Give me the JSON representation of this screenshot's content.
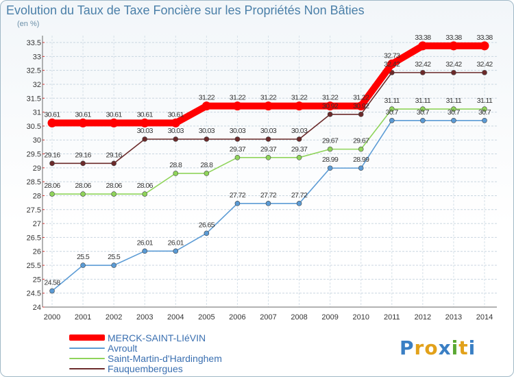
{
  "chart_data": {
    "type": "line",
    "title": "Evolution du Taux de Taxe Foncière sur les Propriétés Non Bâties",
    "ylabel": "(en %)",
    "xlabel": "",
    "x": [
      "2000",
      "2001",
      "2002",
      "2003",
      "2004",
      "2005",
      "2006",
      "2007",
      "2008",
      "2009",
      "2010",
      "2011",
      "2012",
      "2013",
      "2014"
    ],
    "ylim": [
      24,
      33.5
    ],
    "yticks": [
      24,
      24.5,
      25,
      25.5,
      26,
      26.5,
      27,
      27.5,
      28,
      28.5,
      29,
      29.5,
      30,
      30.5,
      31,
      31.5,
      32,
      32.5,
      33,
      33.5
    ],
    "grid": true,
    "series": [
      {
        "name": "MERCK-SAINT-LIéVIN",
        "color": "#ff0000",
        "values": [
          30.61,
          30.61,
          30.61,
          30.61,
          30.61,
          31.22,
          31.22,
          31.22,
          31.22,
          31.22,
          31.22,
          32.73,
          33.38,
          33.38,
          33.38
        ],
        "labels": [
          "30.61",
          "30.61",
          "30.61",
          "30.61",
          "30.61",
          "31.22",
          "31.22",
          "31.22",
          "31.22",
          "31.22",
          "31.22",
          "32.73",
          "33.38",
          "33.38",
          "33.38"
        ]
      },
      {
        "name": "Avroult",
        "color": "#5b9bd5",
        "values": [
          24.58,
          25.5,
          25.5,
          26.01,
          26.01,
          26.65,
          27.72,
          27.72,
          27.72,
          28.99,
          28.99,
          30.7,
          30.7,
          30.7,
          30.7
        ],
        "labels": [
          "24.58",
          "25.5",
          "25.5",
          "26.01",
          "26.01",
          "26.65",
          "27.72",
          "27.72",
          "27.72",
          "28.99",
          "28.99",
          "30.7",
          "30.7",
          "30.7",
          "30.7"
        ]
      },
      {
        "name": "Saint-Martin-d'Hardinghem",
        "color": "#8fd45a",
        "values": [
          28.06,
          28.06,
          28.06,
          28.06,
          28.8,
          28.8,
          29.37,
          29.37,
          29.37,
          29.67,
          29.67,
          31.11,
          31.11,
          31.11,
          31.11
        ],
        "labels": [
          "28.06",
          "28.06",
          "28.06",
          "28.06",
          "28.8",
          "28.8",
          "29.37",
          "29.37",
          "29.37",
          "29.67",
          "29.67",
          "31.11",
          "31.11",
          "31.11",
          "31.11"
        ]
      },
      {
        "name": "Fauquembergues",
        "color": "#6b2a2a",
        "values": [
          29.16,
          29.16,
          29.16,
          30.03,
          30.03,
          30.03,
          30.03,
          30.03,
          30.03,
          30.92,
          30.92,
          32.42,
          32.42,
          32.42,
          32.42
        ],
        "labels": [
          "29.16",
          "29.16",
          "29.16",
          "30.03",
          "30.03",
          "30.03",
          "30.03",
          "30.03",
          "30.03",
          "30.92",
          "30.92",
          "32.42",
          "32.42",
          "32.42",
          "32.42"
        ]
      }
    ]
  },
  "logo": {
    "text": "Proxiti"
  }
}
